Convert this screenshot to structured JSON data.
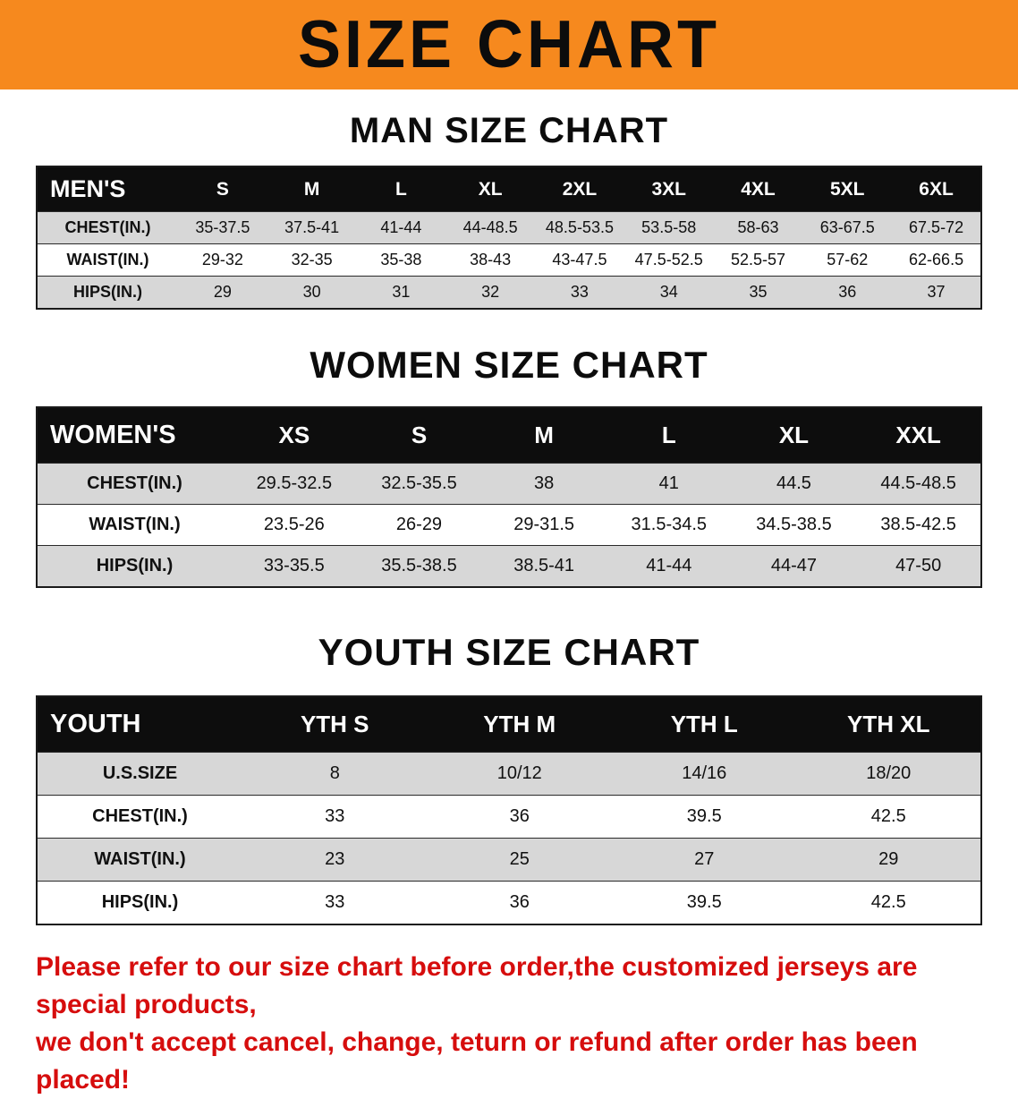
{
  "banner": {
    "title": "SIZE CHART"
  },
  "colors": {
    "banner_orange": "#f6891e",
    "header_black": "#0d0d0d",
    "row_shade": "#d7d7d7",
    "note_red": "#d60d0d"
  },
  "sections": [
    {
      "id": "men",
      "heading": "MAN SIZE CHART",
      "table": {
        "header": [
          "MEN'S",
          "S",
          "M",
          "L",
          "XL",
          "2XL",
          "3XL",
          "4XL",
          "5XL",
          "6XL"
        ],
        "rows": [
          {
            "label": "CHEST(IN.)",
            "values": [
              "35-37.5",
              "37.5-41",
              "41-44",
              "44-48.5",
              "48.5-53.5",
              "53.5-58",
              "58-63",
              "63-67.5",
              "67.5-72"
            ]
          },
          {
            "label": "WAIST(IN.)",
            "values": [
              "29-32",
              "32-35",
              "35-38",
              "38-43",
              "43-47.5",
              "47.5-52.5",
              "52.5-57",
              "57-62",
              "62-66.5"
            ]
          },
          {
            "label": "HIPS(IN.)",
            "values": [
              "29",
              "30",
              "31",
              "32",
              "33",
              "34",
              "35",
              "36",
              "37"
            ]
          }
        ]
      }
    },
    {
      "id": "women",
      "heading": "WOMEN SIZE CHART",
      "table": {
        "header": [
          "WOMEN'S",
          "XS",
          "S",
          "M",
          "L",
          "XL",
          "XXL"
        ],
        "rows": [
          {
            "label": "CHEST(IN.)",
            "values": [
              "29.5-32.5",
              "32.5-35.5",
              "38",
              "41",
              "44.5",
              "44.5-48.5"
            ]
          },
          {
            "label": "WAIST(IN.)",
            "values": [
              "23.5-26",
              "26-29",
              "29-31.5",
              "31.5-34.5",
              "34.5-38.5",
              "38.5-42.5"
            ]
          },
          {
            "label": "HIPS(IN.)",
            "values": [
              "33-35.5",
              "35.5-38.5",
              "38.5-41",
              "41-44",
              "44-47",
              "47-50"
            ]
          }
        ]
      }
    },
    {
      "id": "youth",
      "heading": "YOUTH SIZE CHART",
      "table": {
        "header": [
          "YOUTH",
          "YTH S",
          "YTH M",
          "YTH L",
          "YTH XL"
        ],
        "rows": [
          {
            "label": "U.S.SIZE",
            "values": [
              "8",
              "10/12",
              "14/16",
              "18/20"
            ]
          },
          {
            "label": "CHEST(IN.)",
            "values": [
              "33",
              "36",
              "39.5",
              "42.5"
            ]
          },
          {
            "label": "WAIST(IN.)",
            "values": [
              "23",
              "25",
              "27",
              "29"
            ]
          },
          {
            "label": "HIPS(IN.)",
            "values": [
              "33",
              "36",
              "39.5",
              "42.5"
            ]
          }
        ]
      }
    }
  ],
  "footer_note": {
    "lines": [
      "Please refer to our size chart before order,the customized jerseys are special products,",
      "we don't accept cancel, change, teturn or refund after order has been placed!"
    ]
  }
}
